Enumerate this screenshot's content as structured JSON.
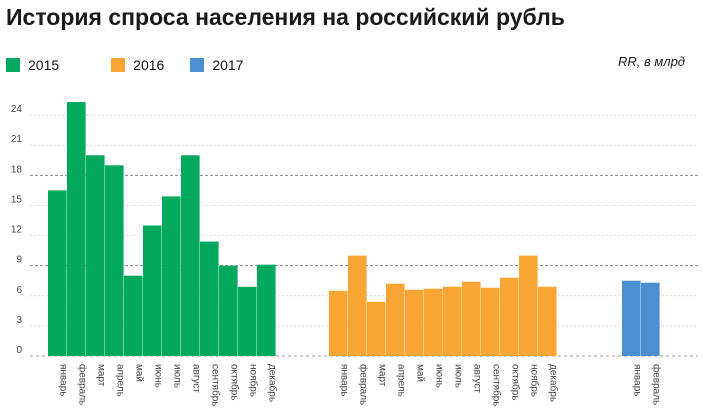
{
  "title": "История спроса населения на российский рубль",
  "unit_label": "RR, в млрд",
  "colors": {
    "2015": "#00A95C",
    "2016": "#F9A533",
    "2017": "#4A90D0"
  },
  "chart_data": {
    "type": "bar",
    "title": "История спроса населения на российский рубль",
    "unit": "RR, в млрд",
    "ylim": [
      0,
      27
    ],
    "yticks": [
      0,
      3,
      6,
      9,
      12,
      15,
      18,
      21,
      24
    ],
    "grid": true,
    "legend_position": "top-left",
    "series": [
      {
        "name": "2015",
        "color": "#00A95C",
        "categories": [
          "январь",
          "февраль",
          "март",
          "апрель",
          "май",
          "июнь",
          "июль",
          "август",
          "сентябрь",
          "октябрь",
          "ноябрь",
          "декабрь"
        ],
        "values": [
          16.5,
          25.3,
          20,
          19,
          8,
          13,
          15.9,
          20,
          11.4,
          9,
          6.9,
          9.1
        ]
      },
      {
        "name": "2016",
        "color": "#F9A533",
        "categories": [
          "январь",
          "февраль",
          "март",
          "апрель",
          "май",
          "июнь",
          "июль",
          "август",
          "сентябрь",
          "октябрь",
          "ноябрь",
          "декабрь"
        ],
        "values": [
          6.5,
          10,
          5.4,
          7.2,
          6.6,
          6.7,
          6.9,
          7.4,
          6.8,
          7.8,
          10,
          6.9
        ]
      },
      {
        "name": "2017",
        "color": "#4A90D0",
        "categories": [
          "январь",
          "февраль"
        ],
        "values": [
          7.5,
          7.3
        ]
      }
    ]
  }
}
